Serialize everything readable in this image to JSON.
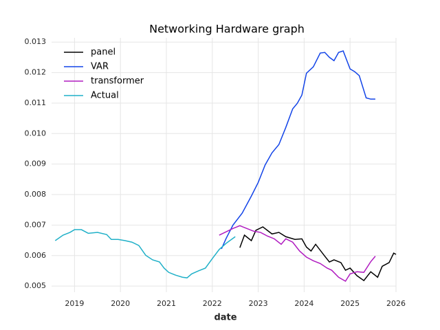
{
  "chart_data": {
    "type": "line",
    "title": "Networking Hardware graph",
    "x_label": "date",
    "xlim": [
      2018.5,
      2026
    ],
    "xticks": [
      2019,
      2020,
      2021,
      2022,
      2023,
      2024,
      2025,
      2026
    ],
    "ylim": [
      0.0048,
      0.01314
    ],
    "yticks": [
      0.005,
      0.006,
      0.007,
      0.008,
      0.009,
      {
        "value": 0.01,
        "label": "0.010"
      },
      0.011,
      0.012,
      0.013
    ],
    "grid": true,
    "legend": "upper left",
    "series": [
      {
        "name": "panel",
        "color": "#000000",
        "x": [
          2022.6,
          2022.7,
          2022.85,
          2022.95,
          2023.1,
          2023.3,
          2023.45,
          2023.6,
          2023.8,
          2023.95,
          2024.05,
          2024.15,
          2024.25,
          2024.45,
          2024.55,
          2024.65,
          2024.8,
          2024.9,
          2025.0,
          2025.15,
          2025.3,
          2025.45,
          2025.6,
          2025.7,
          2025.85,
          2025.95,
          2026.0
        ],
        "values": [
          0.00626,
          0.00667,
          0.00649,
          0.00683,
          0.00694,
          0.00671,
          0.00676,
          0.00662,
          0.00653,
          0.00655,
          0.00628,
          0.00615,
          0.00637,
          0.00598,
          0.00579,
          0.00586,
          0.00577,
          0.00552,
          0.00559,
          0.00534,
          0.00518,
          0.00547,
          0.00529,
          0.00565,
          0.00577,
          0.00608,
          0.00604
        ]
      },
      {
        "name": "VAR",
        "color": "#1143e8",
        "x": [
          2022.2,
          2022.3,
          2022.45,
          2022.65,
          2022.85,
          2023.0,
          2023.15,
          2023.3,
          2023.45,
          2023.6,
          2023.75,
          2023.85,
          2023.95,
          2024.05,
          2024.2,
          2024.35,
          2024.45,
          2024.55,
          2024.65,
          2024.75,
          2024.85,
          2025.0,
          2025.1,
          2025.2,
          2025.35,
          2025.45,
          2025.55
        ],
        "values": [
          0.00622,
          0.00656,
          0.007,
          0.00739,
          0.00795,
          0.0084,
          0.00897,
          0.00937,
          0.00964,
          0.0102,
          0.01081,
          0.01099,
          0.01126,
          0.01198,
          0.01219,
          0.01264,
          0.01266,
          0.0125,
          0.01239,
          0.01266,
          0.01271,
          0.01212,
          0.01203,
          0.0119,
          0.01117,
          0.01113,
          0.01113
        ]
      },
      {
        "name": "transformer",
        "color": "#b01bc0",
        "x": [
          2022.15,
          2022.3,
          2022.45,
          2022.6,
          2022.75,
          2022.9,
          2023.05,
          2023.2,
          2023.35,
          2023.5,
          2023.6,
          2023.75,
          2023.9,
          2024.05,
          2024.2,
          2024.35,
          2024.5,
          2024.6,
          2024.75,
          2024.9,
          2025.0,
          2025.15,
          2025.3,
          2025.45,
          2025.55
        ],
        "values": [
          0.00667,
          0.00678,
          0.00689,
          0.00698,
          0.00689,
          0.0068,
          0.00676,
          0.00664,
          0.00655,
          0.00637,
          0.00655,
          0.00644,
          0.00615,
          0.00595,
          0.00583,
          0.00574,
          0.00559,
          0.00552,
          0.00529,
          0.00516,
          0.0054,
          0.00547,
          0.00545,
          0.0058,
          0.00598
        ]
      },
      {
        "name": "Actual",
        "color": "#1fb0c8",
        "x": [
          2018.58,
          2018.75,
          2018.9,
          2019.0,
          2019.15,
          2019.3,
          2019.5,
          2019.7,
          2019.8,
          2019.95,
          2020.1,
          2020.25,
          2020.4,
          2020.55,
          2020.7,
          2020.85,
          2020.95,
          2021.05,
          2021.2,
          2021.35,
          2021.45,
          2021.55,
          2021.7,
          2021.85,
          2022.0,
          2022.15,
          2022.3,
          2022.5
        ],
        "values": [
          0.00649,
          0.00667,
          0.00676,
          0.00685,
          0.00685,
          0.00673,
          0.00676,
          0.00669,
          0.00653,
          0.00653,
          0.00649,
          0.00644,
          0.00633,
          0.00601,
          0.00586,
          0.00579,
          0.00559,
          0.00545,
          0.00536,
          0.00529,
          0.00527,
          0.0054,
          0.0055,
          0.00559,
          0.0059,
          0.0062,
          0.0064,
          0.00662
        ]
      }
    ]
  }
}
